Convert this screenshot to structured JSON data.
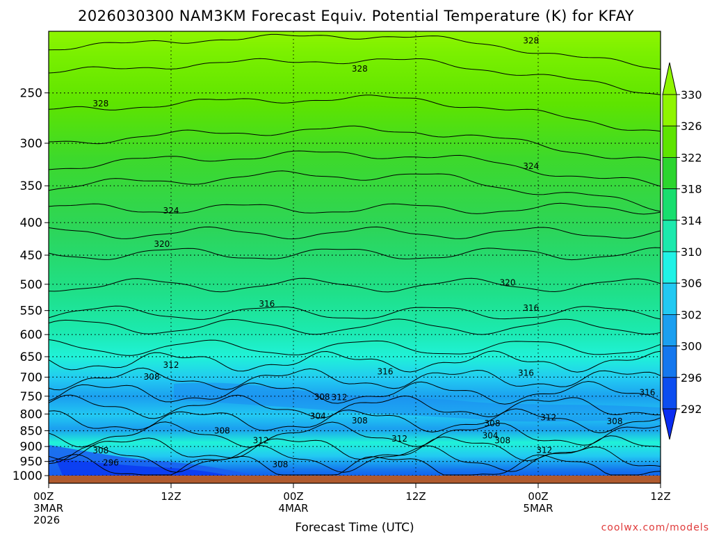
{
  "chart_data": {
    "type": "heatmap",
    "title": "2026030300 NAM3KM Forecast Equiv. Potential Temperature (K) for KFAY",
    "xlabel": "Forecast Time (UTC)",
    "ylabel": "",
    "y_scale": "log",
    "y_ticks": [
      250,
      300,
      350,
      400,
      450,
      500,
      550,
      600,
      650,
      700,
      750,
      800,
      850,
      900,
      950,
      1000
    ],
    "ylim": [
      1000,
      200
    ],
    "x_ticks": [
      {
        "line1": "00Z",
        "line2": "3MAR",
        "line3": "2026"
      },
      {
        "line1": "12Z",
        "line2": "",
        "line3": ""
      },
      {
        "line1": "00Z",
        "line2": "4MAR",
        "line3": ""
      },
      {
        "line1": "12Z",
        "line2": "",
        "line3": ""
      },
      {
        "line1": "00Z",
        "line2": "5MAR",
        "line3": ""
      },
      {
        "line1": "12Z",
        "line2": "",
        "line3": ""
      }
    ],
    "xlim_hours": [
      0,
      60
    ],
    "grid": true,
    "colorbar_levels": [
      "330",
      "326",
      "322",
      "318",
      "314",
      "310",
      "306",
      "302",
      "300",
      "296",
      "292"
    ],
    "colorbar_colors": [
      "#8ff500",
      "#5ee400",
      "#2cd52e",
      "#18de6e",
      "#1ce9ad",
      "#20f2e6",
      "#22c9f2",
      "#1b9ff0",
      "#1477ee",
      "#0c4df0",
      "#0a2cf2"
    ],
    "contour_labels": [
      {
        "text": "328",
        "hour": 5.1,
        "pressure": 260
      },
      {
        "text": "328",
        "hour": 30.5,
        "pressure": 229
      },
      {
        "text": "328",
        "hour": 47.3,
        "pressure": 207
      },
      {
        "text": "324",
        "hour": 12.0,
        "pressure": 383
      },
      {
        "text": "324",
        "hour": 47.3,
        "pressure": 326
      },
      {
        "text": "320",
        "hour": 11.1,
        "pressure": 432
      },
      {
        "text": "320",
        "hour": 45.0,
        "pressure": 497
      },
      {
        "text": "316",
        "hour": 21.4,
        "pressure": 537
      },
      {
        "text": "316",
        "hour": 47.3,
        "pressure": 545
      },
      {
        "text": "316",
        "hour": 33.0,
        "pressure": 686
      },
      {
        "text": "316",
        "hour": 46.8,
        "pressure": 690
      },
      {
        "text": "316",
        "hour": 58.7,
        "pressure": 740
      },
      {
        "text": "312",
        "hour": 12.0,
        "pressure": 670
      },
      {
        "text": "312",
        "hour": 28.5,
        "pressure": 753
      },
      {
        "text": "312",
        "hour": 34.4,
        "pressure": 875
      },
      {
        "text": "312",
        "hour": 49.0,
        "pressure": 810
      },
      {
        "text": "312",
        "hour": 20.8,
        "pressure": 880
      },
      {
        "text": "312",
        "hour": 48.6,
        "pressure": 912
      },
      {
        "text": "308",
        "hour": 10.1,
        "pressure": 699
      },
      {
        "text": "308",
        "hour": 26.8,
        "pressure": 752
      },
      {
        "text": "308",
        "hour": 30.5,
        "pressure": 820
      },
      {
        "text": "308",
        "hour": 17.0,
        "pressure": 850
      },
      {
        "text": "308",
        "hour": 43.5,
        "pressure": 828
      },
      {
        "text": "308",
        "hour": 55.5,
        "pressure": 822
      },
      {
        "text": "308",
        "hour": 44.5,
        "pressure": 880
      },
      {
        "text": "308",
        "hour": 5.1,
        "pressure": 913
      },
      {
        "text": "308",
        "hour": 22.7,
        "pressure": 960
      },
      {
        "text": "304",
        "hour": 26.4,
        "pressure": 806
      },
      {
        "text": "304",
        "hour": 43.3,
        "pressure": 865
      },
      {
        "text": "296",
        "hour": 6.1,
        "pressure": 955
      }
    ]
  },
  "credit": "coolwx.com/models"
}
